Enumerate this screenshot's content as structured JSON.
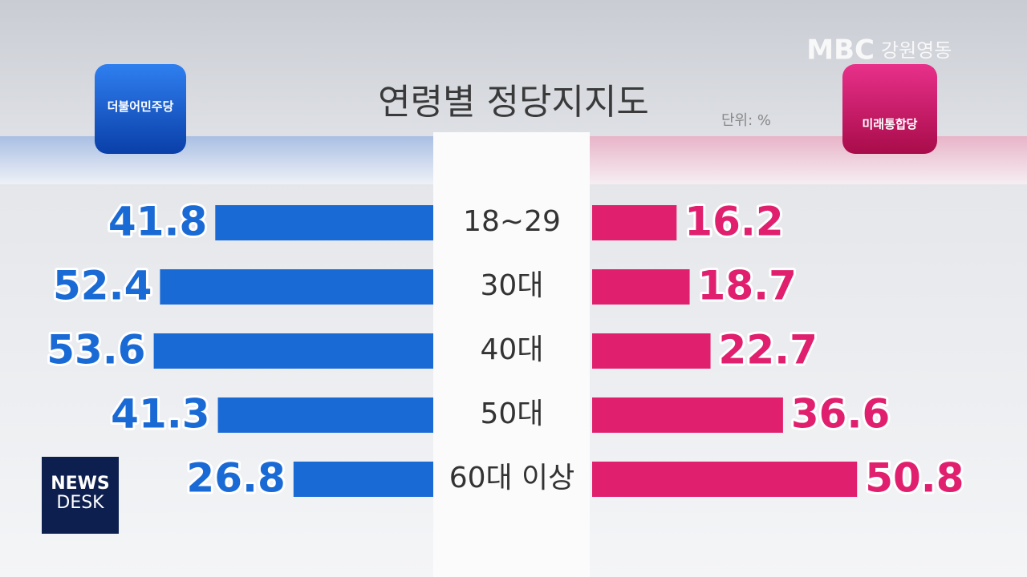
{
  "broadcast": {
    "channel": "MBC",
    "region": "강원영동",
    "program": [
      "NEWS",
      "DESK"
    ]
  },
  "chart_data": {
    "type": "butterfly",
    "title": "연령별 정당지지도",
    "unit": "단위: %",
    "categories": [
      "18~29",
      "30대",
      "40대",
      "50대",
      "60대 이상"
    ],
    "xlim": [
      0,
      60
    ],
    "series": [
      {
        "name": "더불어민주당",
        "color": "#1a6ad6",
        "values": [
          41.8,
          52.4,
          53.6,
          41.3,
          26.8
        ]
      },
      {
        "name": "미래통합당",
        "color": "#e0206e",
        "values": [
          16.2,
          18.7,
          22.7,
          36.6,
          50.8
        ]
      }
    ]
  }
}
